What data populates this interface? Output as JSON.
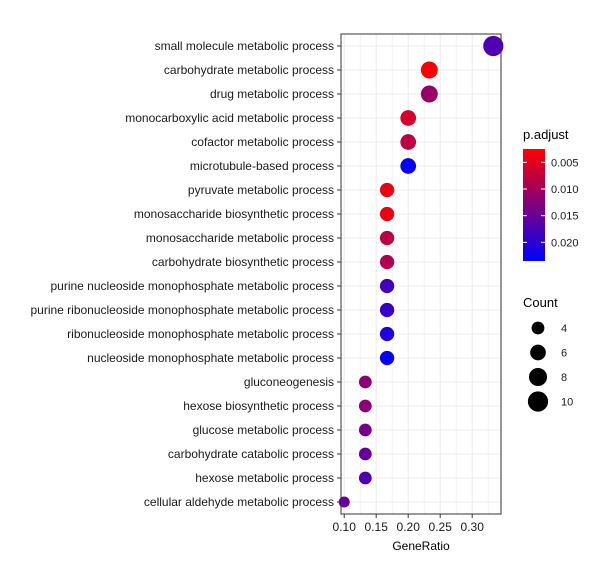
{
  "chart_data": {
    "type": "scatter",
    "subtype": "dot-plot",
    "xlabel": "GeneRatio",
    "ylabel": "",
    "xlim": [
      0.095,
      0.345
    ],
    "x_ticks": [
      0.1,
      0.15,
      0.2,
      0.25,
      0.3
    ],
    "x_tick_labels": [
      "0.10",
      "0.15",
      "0.20",
      "0.25",
      "0.30"
    ],
    "grid": true,
    "terms": [
      {
        "label": "small molecule metabolic process",
        "gene_ratio": 0.333,
        "count": 10,
        "p_adjust": 0.017
      },
      {
        "label": "carbohydrate metabolic process",
        "gene_ratio": 0.233,
        "count": 7,
        "p_adjust": 0.003
      },
      {
        "label": "drug metabolic process",
        "gene_ratio": 0.233,
        "count": 7,
        "p_adjust": 0.011
      },
      {
        "label": "monocarboxylic acid metabolic process",
        "gene_ratio": 0.2,
        "count": 6,
        "p_adjust": 0.006
      },
      {
        "label": "cofactor metabolic process",
        "gene_ratio": 0.2,
        "count": 6,
        "p_adjust": 0.008
      },
      {
        "label": "microtubule-based process",
        "gene_ratio": 0.2,
        "count": 6,
        "p_adjust": 0.023
      },
      {
        "label": "pyruvate metabolic process",
        "gene_ratio": 0.167,
        "count": 5,
        "p_adjust": 0.004
      },
      {
        "label": "monosaccharide biosynthetic process",
        "gene_ratio": 0.167,
        "count": 5,
        "p_adjust": 0.004
      },
      {
        "label": "monosaccharide metabolic process",
        "gene_ratio": 0.167,
        "count": 5,
        "p_adjust": 0.008
      },
      {
        "label": "carbohydrate biosynthetic process",
        "gene_ratio": 0.167,
        "count": 5,
        "p_adjust": 0.009
      },
      {
        "label": "purine nucleoside monophosphate metabolic process",
        "gene_ratio": 0.167,
        "count": 5,
        "p_adjust": 0.018
      },
      {
        "label": "purine ribonucleoside monophosphate metabolic process",
        "gene_ratio": 0.167,
        "count": 5,
        "p_adjust": 0.019
      },
      {
        "label": "ribonucleoside monophosphate metabolic process",
        "gene_ratio": 0.167,
        "count": 5,
        "p_adjust": 0.021
      },
      {
        "label": "nucleoside monophosphate metabolic process",
        "gene_ratio": 0.167,
        "count": 5,
        "p_adjust": 0.023
      },
      {
        "label": "gluconeogenesis",
        "gene_ratio": 0.133,
        "count": 4,
        "p_adjust": 0.012
      },
      {
        "label": "hexose biosynthetic process",
        "gene_ratio": 0.133,
        "count": 4,
        "p_adjust": 0.012
      },
      {
        "label": "glucose metabolic process",
        "gene_ratio": 0.133,
        "count": 4,
        "p_adjust": 0.014
      },
      {
        "label": "carbohydrate catabolic process",
        "gene_ratio": 0.133,
        "count": 4,
        "p_adjust": 0.015
      },
      {
        "label": "hexose metabolic process",
        "gene_ratio": 0.133,
        "count": 4,
        "p_adjust": 0.017
      },
      {
        "label": "cellular aldehyde metabolic process",
        "gene_ratio": 0.1,
        "count": 3,
        "p_adjust": 0.015
      }
    ],
    "color_legend": {
      "title": "p.adjust",
      "low_color": "#ff0000",
      "high_color": "#0000ff",
      "range": [
        0.0025,
        0.0235
      ],
      "ticks": [
        0.005,
        0.01,
        0.015,
        0.02
      ],
      "tick_labels": [
        "0.005",
        "0.010",
        "0.015",
        "0.020"
      ]
    },
    "size_legend": {
      "title": "Count",
      "values": [
        4,
        6,
        8,
        10
      ],
      "labels": [
        "4",
        "6",
        "8",
        "10"
      ]
    },
    "colors": {
      "panel_border": "#333333",
      "grid": "#ebebeb",
      "point_default": "#000000"
    }
  }
}
